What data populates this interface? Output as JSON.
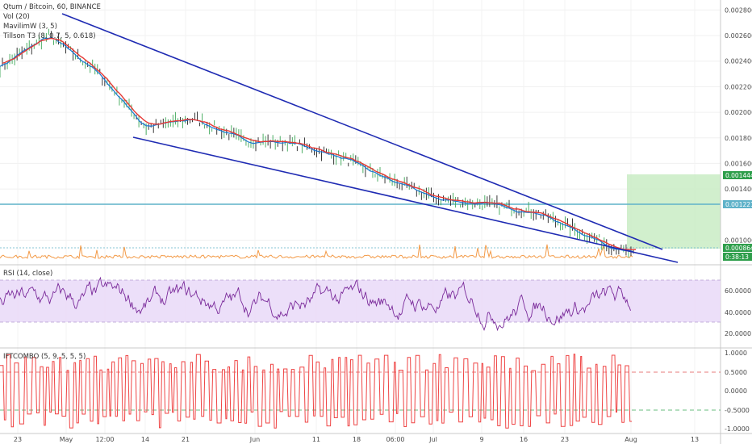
{
  "header": {
    "title": "Qtum / Bitcoin, 60, BINANCE",
    "indicators": [
      "Vol (20)",
      "MavilimW (3, 5)",
      "Tillson T3 (8, 0.7, 5, 0.618)"
    ]
  },
  "price_axis": {
    "ticks": [
      "0.002800",
      "0.002600",
      "0.002400",
      "0.002200",
      "0.002000",
      "0.001800",
      "0.001600",
      "0.001400",
      "0.001000"
    ],
    "badges": {
      "upper_green": "0.001444",
      "blue_line": "0.001221",
      "current": "0.000864",
      "countdown": "0:38:13"
    }
  },
  "rsi_panel": {
    "title": "RSI (14, close)",
    "ticks": [
      "60.0000",
      "40.0000",
      "20.0000"
    ]
  },
  "ift_panel": {
    "title": "IFTCOMBO (5, 9, 5, 5, 5)",
    "ticks": [
      "1.0000",
      "0.5000",
      "0.0000",
      "-0.5000",
      "-1.0000"
    ]
  },
  "time_axis": {
    "labels": [
      "23",
      "May",
      "12:00",
      "14",
      "21",
      "Jun",
      "11",
      "18",
      "06:00",
      "Jul",
      "9",
      "16",
      "23",
      "Aug",
      "13"
    ]
  },
  "colors": {
    "trendline": "#1f2bb3",
    "hline": "#5fb2c9",
    "green_box": "#c9ecc4",
    "rsi_band": "#eadcf8",
    "rsi_line": "#7a2a9a",
    "ift_line": "#ef4444",
    "vol": "#f39a47",
    "tillson": "#e53935",
    "mavilim": "#1976d2"
  },
  "chart_data": [
    {
      "type": "line",
      "title": "Qtum / Bitcoin, 60, BINANCE",
      "x": [
        "Apr 23",
        "May 1",
        "May 7",
        "May 14",
        "May 21",
        "Jun 1",
        "Jun 11",
        "Jun 18",
        "Jun 25",
        "Jul 1",
        "Jul 9",
        "Jul 16",
        "Jul 23",
        "Aug 1"
      ],
      "series": [
        {
          "name": "Qtum / Bitcoin",
          "values": [
            0.00235,
            0.0026,
            0.00232,
            0.00188,
            0.00195,
            0.00178,
            0.00176,
            0.00165,
            0.00147,
            0.00132,
            0.00128,
            0.00122,
            0.00105,
            0.00088
          ]
        }
      ],
      "ylim": [
        0.00082,
        0.00284
      ]
    },
    {
      "type": "line",
      "title": "RSI (14, close)",
      "series": [
        {
          "name": "RSI",
          "values": [
            52,
            60,
            38,
            45,
            55,
            42,
            62,
            48,
            35,
            55,
            50,
            44,
            40,
            30,
            60
          ]
        }
      ],
      "ylim": [
        10,
        85
      ]
    },
    {
      "type": "line",
      "title": "IFTCOMBO (5, 9, 5, 5, 5)",
      "series": [
        {
          "name": "IFTCOMBO",
          "values": [
            0.9,
            -0.9,
            0.8,
            -0.8,
            0.95,
            -0.95,
            0.7,
            -0.7,
            0.9,
            -0.9
          ]
        }
      ],
      "ylim": [
        -1.1,
        1.1
      ]
    }
  ]
}
